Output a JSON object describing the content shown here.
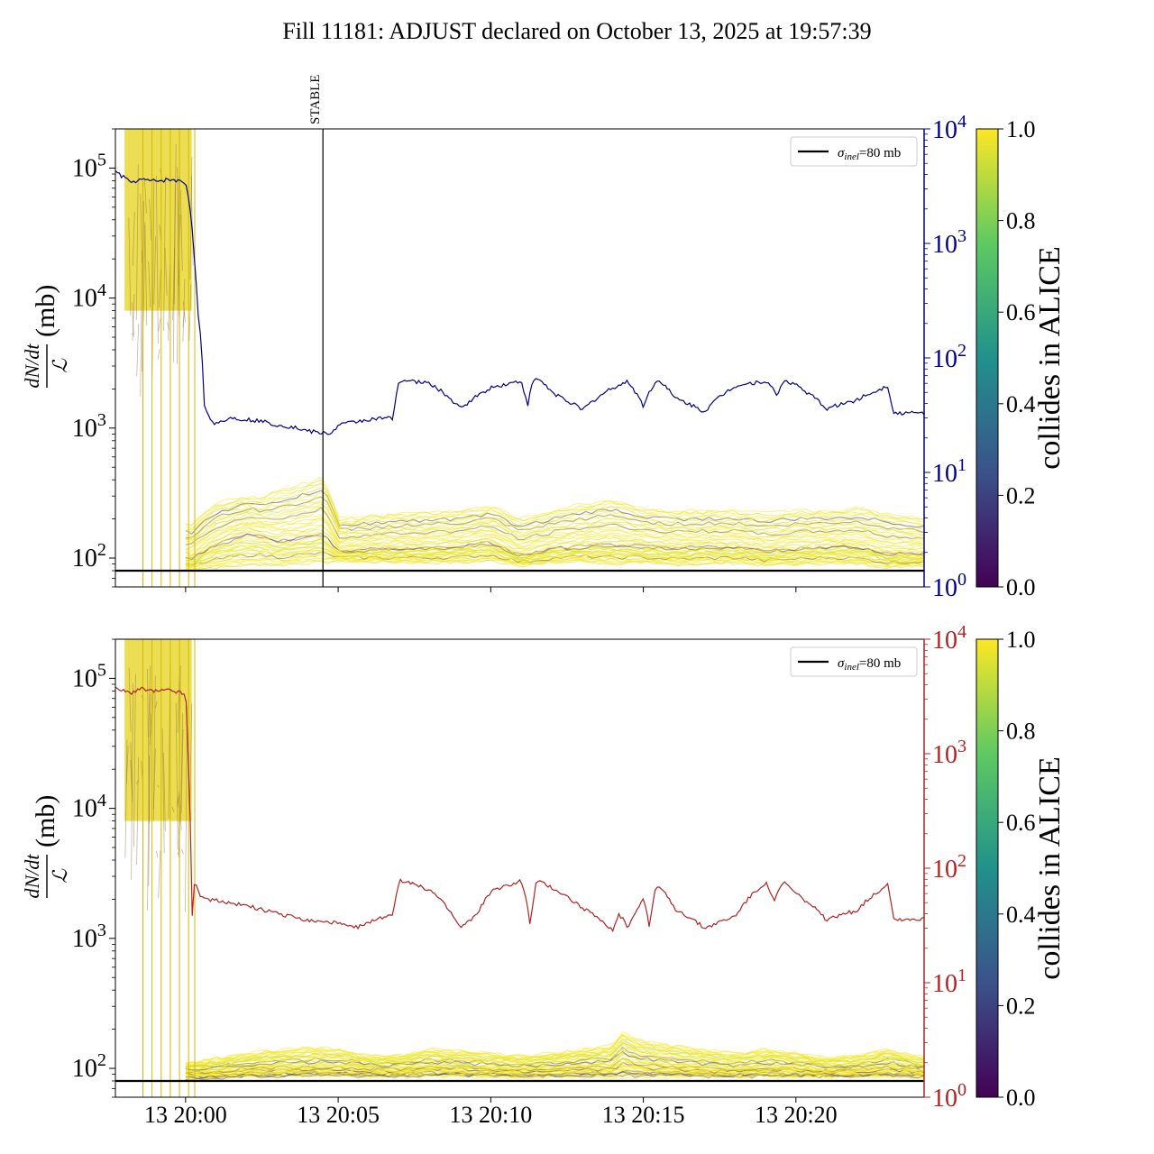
{
  "title": "Fill 11181: ADJUST declared on October 13, 2025 at 19:57:39",
  "colors": {
    "top_rate": "#00008b",
    "bottom_rate": "#b22222",
    "reference_line": "#000000",
    "viridis": [
      "#440154",
      "#3b528b",
      "#21918c",
      "#5ec962",
      "#fde725"
    ]
  },
  "chart_data": [
    {
      "type": "line",
      "panel": "top",
      "ylabel_num": "dN/dt",
      "ylabel_den": "ℒ",
      "ylabel_unit": "(mb)",
      "yscale": "log",
      "ylim": [
        60,
        200000
      ],
      "yticks": [
        "10^2",
        "10^3",
        "10^4",
        "10^5"
      ],
      "y2scale": "log",
      "y2lim": [
        1,
        10000
      ],
      "y2ticks": [
        "10^0",
        "10^1",
        "10^2",
        "10^3",
        "10^4"
      ],
      "xlim_min": [
        -2.3,
        24.2
      ],
      "xticks_min": [
        0,
        5,
        10,
        15,
        20
      ],
      "xticklabels": [
        "13 20:00",
        "13 20:05",
        "13 20:10",
        "13 20:15",
        "13 20:20"
      ],
      "show_xticklabels": false,
      "vline": {
        "x_min": 4.5,
        "label": "STABLE"
      },
      "reference": {
        "label": "σinel=80 mb",
        "sigma_label": "σ",
        "sub_label": "inel",
        "rest_label": "=80 mb",
        "value": 80
      },
      "legend": "top-right",
      "rate_series": {
        "x_min": [
          -2.3,
          -1.8,
          -1.5,
          -1.0,
          -0.5,
          0.0,
          0.3,
          0.4,
          0.6,
          0.8,
          1.0,
          1.5,
          2.0,
          2.5,
          3.0,
          3.5,
          4.0,
          4.5,
          4.8,
          5.0,
          6.0,
          6.8,
          7.0,
          8.0,
          9.0,
          10.0,
          11.0,
          11.2,
          11.4,
          11.6,
          12.0,
          13.0,
          14.0,
          14.5,
          15.0,
          15.4,
          15.6,
          16.0,
          17.0,
          18.0,
          19.0,
          19.4,
          19.6,
          20.0,
          21.0,
          22.0,
          23.0,
          23.2,
          24.2
        ],
        "values": [
          4200,
          3400,
          3600,
          3500,
          3600,
          3400,
          600,
          260,
          38,
          28,
          27,
          30,
          29,
          28,
          26,
          25,
          23,
          22,
          22,
          26,
          29,
          30,
          64,
          60,
          36,
          55,
          63,
          37,
          64,
          65,
          50,
          35,
          55,
          62,
          38,
          62,
          62,
          45,
          34,
          57,
          63,
          47,
          64,
          58,
          36,
          43,
          57,
          33,
          33
        ]
      },
      "multiplicity_band": {
        "x_min": [
          0.0,
          0.2,
          1.0,
          2.0,
          2.5,
          3.0,
          4.0,
          4.5,
          5.0,
          7.0,
          9.0,
          10.0,
          11.0,
          12.0,
          13.0,
          14.0,
          15.0,
          16.0,
          17.0,
          18.0,
          19.0,
          20.0,
          21.0,
          22.0,
          23.0,
          24.2
        ],
        "low": [
          82,
          82,
          85,
          88,
          90,
          88,
          92,
          92,
          95,
          93,
          92,
          95,
          88,
          92,
          94,
          90,
          92,
          90,
          90,
          92,
          88,
          90,
          92,
          90,
          86,
          88
        ],
        "median": [
          100,
          100,
          130,
          160,
          150,
          140,
          150,
          160,
          115,
          120,
          125,
          135,
          105,
          120,
          125,
          130,
          125,
          120,
          125,
          125,
          115,
          120,
          125,
          125,
          110,
          110
        ],
        "high": [
          180,
          180,
          260,
          300,
          290,
          330,
          380,
          420,
          200,
          220,
          230,
          250,
          200,
          230,
          260,
          280,
          240,
          230,
          230,
          230,
          220,
          230,
          230,
          240,
          220,
          200
        ]
      },
      "injection_spikes_min": [
        -1.4,
        -1.1,
        -0.8,
        -0.5,
        -0.2,
        0.1,
        0.3
      ]
    },
    {
      "type": "line",
      "panel": "bottom",
      "ylabel_num": "dN/dt",
      "ylabel_den": "ℒ",
      "ylabel_unit": "(mb)",
      "yscale": "log",
      "ylim": [
        60,
        200000
      ],
      "yticks": [
        "10^2",
        "10^3",
        "10^4",
        "10^5"
      ],
      "y2scale": "log",
      "y2lim": [
        1,
        10000
      ],
      "y2ticks": [
        "10^0",
        "10^1",
        "10^2",
        "10^3",
        "10^4"
      ],
      "xlim_min": [
        -2.3,
        24.2
      ],
      "xticks_min": [
        0,
        5,
        10,
        15,
        20
      ],
      "xticklabels": [
        "13 20:00",
        "13 20:05",
        "13 20:10",
        "13 20:15",
        "13 20:20"
      ],
      "show_xticklabels": true,
      "reference": {
        "label": "σinel=80 mb",
        "sigma_label": "σ",
        "sub_label": "inel",
        "rest_label": "=80 mb",
        "value": 80
      },
      "legend": "top-right",
      "rate_series": {
        "x_min": [
          -2.3,
          -1.8,
          -1.5,
          -1.0,
          -0.5,
          0.0,
          0.1,
          0.2,
          0.3,
          0.5,
          1.0,
          2.0,
          3.0,
          4.0,
          5.0,
          5.5,
          6.0,
          6.5,
          6.8,
          7.0,
          8.0,
          9.0,
          9.5,
          10.0,
          11.0,
          11.3,
          11.5,
          12.0,
          13.0,
          14.0,
          14.2,
          14.5,
          15.0,
          15.2,
          15.4,
          15.6,
          16.0,
          17.0,
          18.0,
          19.0,
          19.3,
          19.6,
          20.0,
          21.0,
          22.0,
          23.0,
          23.2,
          24.2
        ],
        "values": [
          3700,
          3400,
          3700,
          3500,
          3600,
          3300,
          500,
          30,
          80,
          55,
          52,
          47,
          40,
          35,
          33,
          30,
          33,
          38,
          40,
          78,
          65,
          30,
          38,
          62,
          78,
          30,
          78,
          68,
          45,
          28,
          40,
          30,
          55,
          30,
          66,
          66,
          45,
          30,
          38,
          75,
          52,
          76,
          60,
          35,
          43,
          72,
          36,
          36
        ]
      },
      "multiplicity_band": {
        "x_min": [
          0.0,
          0.2,
          1.0,
          2.0,
          3.0,
          4.0,
          5.0,
          6.0,
          7.0,
          8.0,
          9.0,
          10.0,
          11.0,
          12.0,
          13.0,
          14.0,
          14.3,
          15.0,
          16.0,
          17.0,
          18.0,
          19.0,
          20.0,
          21.0,
          22.0,
          23.0,
          24.2
        ],
        "low": [
          82,
          82,
          84,
          86,
          86,
          87,
          87,
          86,
          86,
          87,
          86,
          86,
          85,
          86,
          86,
          85,
          86,
          86,
          86,
          86,
          86,
          86,
          86,
          86,
          86,
          86,
          86
        ],
        "median": [
          95,
          95,
          95,
          100,
          102,
          102,
          104,
          100,
          100,
          104,
          103,
          100,
          98,
          100,
          104,
          104,
          118,
          108,
          104,
          100,
          98,
          102,
          100,
          96,
          98,
          104,
          96
        ],
        "high": [
          110,
          110,
          120,
          130,
          138,
          145,
          140,
          125,
          125,
          140,
          135,
          130,
          125,
          130,
          140,
          150,
          190,
          160,
          150,
          140,
          130,
          140,
          130,
          120,
          125,
          140,
          120
        ]
      },
      "injection_spikes_min": [
        -1.4,
        -1.1,
        -0.8,
        -0.5,
        -0.2,
        0.1,
        0.3
      ]
    }
  ],
  "colorbars": [
    {
      "label": "collides in ALICE",
      "ticks": [
        "0.0",
        "0.2",
        "0.4",
        "0.6",
        "0.8",
        "1.0"
      ],
      "range": [
        0,
        1
      ]
    },
    {
      "label": "collides in ALICE",
      "ticks": [
        "0.0",
        "0.2",
        "0.4",
        "0.6",
        "0.8",
        "1.0"
      ],
      "range": [
        0,
        1
      ]
    }
  ]
}
